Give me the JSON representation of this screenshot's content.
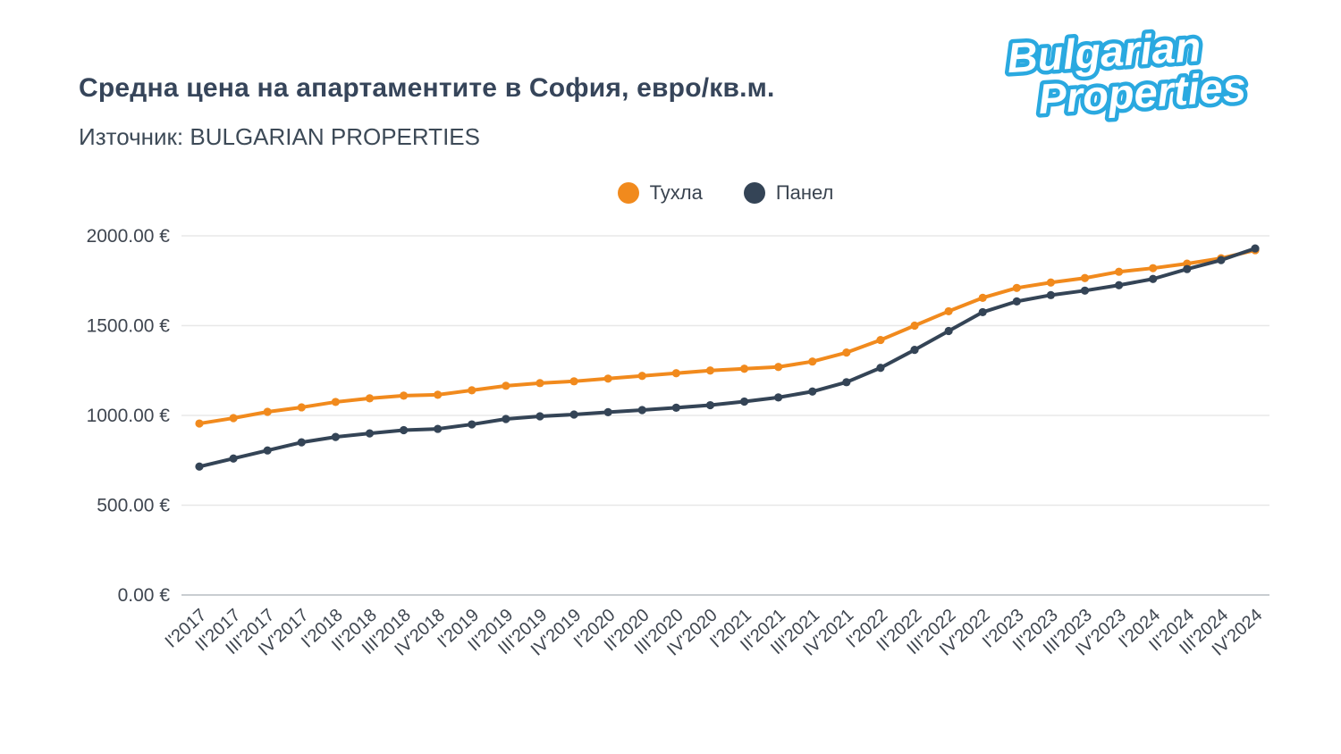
{
  "page": {
    "source": "Източник: BULGARIAN PROPERTIES"
  },
  "logo": {
    "line1": "Bulgarian",
    "line2": "Properties",
    "color": "#2aa9e0"
  },
  "chart_data": {
    "type": "line",
    "title": "Средна цена на апартаментите в София, евро/кв.м.",
    "xlabel": "",
    "ylabel": "",
    "ylim": [
      0,
      2000
    ],
    "grid": true,
    "legend_position": "top-center",
    "y_ticks": [
      {
        "value": 0,
        "label": "0.00 €"
      },
      {
        "value": 500,
        "label": "500.00 €"
      },
      {
        "value": 1000,
        "label": "1000.00 €"
      },
      {
        "value": 1500,
        "label": "1500.00 €"
      },
      {
        "value": 2000,
        "label": "2000.00 €"
      }
    ],
    "categories": [
      "I'2017",
      "II'2017",
      "III'2017",
      "IV'2017",
      "I'2018",
      "II'2018",
      "III'2018",
      "IV'2018",
      "I'2019",
      "II'2019",
      "III'2019",
      "IV'2019",
      "I'2020",
      "II'2020",
      "III'2020",
      "IV'2020",
      "I'2021",
      "II'2021",
      "III'2021",
      "IV'2021",
      "I'2022",
      "II'2022",
      "III'2022",
      "IV'2022",
      "I'2023",
      "II'2023",
      "III'2023",
      "IV'2023",
      "I'2024",
      "II'2024",
      "III'2024",
      "IV'2024"
    ],
    "series": [
      {
        "name": "Тухла",
        "color": "#f18a1d",
        "values": [
          955,
          985,
          1020,
          1045,
          1075,
          1095,
          1110,
          1115,
          1140,
          1165,
          1180,
          1190,
          1205,
          1220,
          1235,
          1250,
          1260,
          1270,
          1300,
          1350,
          1420,
          1500,
          1580,
          1655,
          1710,
          1740,
          1765,
          1800,
          1820,
          1845,
          1875,
          1920
        ]
      },
      {
        "name": "Панел",
        "color": "#344456",
        "values": [
          715,
          760,
          805,
          850,
          880,
          900,
          918,
          925,
          950,
          980,
          995,
          1005,
          1018,
          1030,
          1043,
          1057,
          1077,
          1100,
          1133,
          1185,
          1265,
          1365,
          1470,
          1575,
          1635,
          1670,
          1695,
          1725,
          1760,
          1815,
          1865,
          1930
        ]
      }
    ]
  }
}
